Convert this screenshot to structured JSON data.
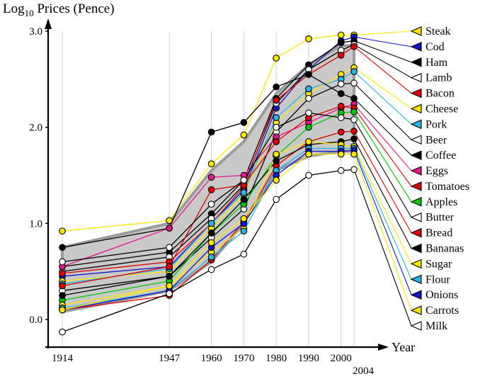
{
  "title": {
    "prefix": "Log",
    "sub": "10",
    "rest": " Prices (Pence)"
  },
  "chart_data": {
    "type": "line",
    "title": "Log10 Prices (Pence)",
    "xlabel": "Year",
    "ylabel": "Log10 Prices (Pence)",
    "x": [
      1914,
      1947,
      1960,
      1970,
      1980,
      1990,
      2000,
      2004
    ],
    "x_tick_labels": [
      "1914",
      "1947",
      "1960",
      "1970",
      "1980",
      "1990",
      "2000",
      "2004"
    ],
    "y_ticks": [
      0.0,
      1.0,
      2.0,
      3.0
    ],
    "y_tick_labels": [
      "0.0",
      "1.0",
      "2.0",
      "3.0"
    ],
    "ylim": [
      -0.25,
      3.1
    ],
    "grid": "vertical",
    "legend_position": "right",
    "band": {
      "name": "price-range-band",
      "fill": "#c9c9c9",
      "stroke": "#9b9b9b",
      "upper": [
        0.75,
        1.0,
        1.55,
        1.85,
        2.35,
        2.65,
        2.85,
        2.85
      ],
      "lower": [
        0.08,
        0.3,
        0.6,
        1.0,
        1.55,
        1.7,
        1.75,
        1.75
      ]
    },
    "series": [
      {
        "name": "Steak",
        "marker": "#ffe800",
        "line": "#ffe800",
        "values": [
          0.92,
          1.03,
          1.62,
          1.92,
          2.72,
          2.92,
          2.96,
          2.96
        ]
      },
      {
        "name": "Cod",
        "marker": "#1414c8",
        "line": "#1414c8",
        "values": [
          0.45,
          0.55,
          1.0,
          1.35,
          2.2,
          2.6,
          2.9,
          2.94
        ]
      },
      {
        "name": "Ham",
        "marker": "#000000",
        "line": "#000000",
        "values": [
          0.55,
          0.7,
          1.1,
          1.45,
          2.3,
          2.65,
          2.88,
          2.9
        ]
      },
      {
        "name": "Lamb",
        "marker": "#ffffff",
        "line": "#000000",
        "values": [
          0.5,
          0.65,
          1.05,
          1.4,
          2.25,
          2.6,
          2.8,
          2.86
        ]
      },
      {
        "name": "Bacon",
        "marker": "#e10000",
        "line": "#e10000",
        "values": [
          0.48,
          0.6,
          1.0,
          1.38,
          2.28,
          2.55,
          2.75,
          2.84
        ]
      },
      {
        "name": "Cheese",
        "marker": "#ffe800",
        "line": "#ffe800",
        "values": [
          0.4,
          0.5,
          0.95,
          1.3,
          2.05,
          2.35,
          2.55,
          2.62
        ]
      },
      {
        "name": "Pork",
        "marker": "#2ab4e6",
        "line": "#2ab4e6",
        "values": [
          0.37,
          0.53,
          1.0,
          1.32,
          2.1,
          2.4,
          2.5,
          2.58
        ]
      },
      {
        "name": "Beer",
        "marker": "#ffffff",
        "line": "#000000",
        "values": [
          0.3,
          0.45,
          0.85,
          1.15,
          1.95,
          2.3,
          2.45,
          2.46
        ]
      },
      {
        "name": "Coffee",
        "marker": "#000000",
        "line": "#000000",
        "values": [
          0.75,
          0.95,
          1.95,
          2.05,
          2.42,
          2.55,
          2.35,
          2.3
        ]
      },
      {
        "name": "Eggs",
        "marker": "#e6198c",
        "line": "#e6198c",
        "values": [
          0.55,
          0.95,
          1.48,
          1.5,
          1.9,
          2.05,
          2.2,
          2.24
        ]
      },
      {
        "name": "Tomatoes",
        "marker": "#e10000",
        "line": "#e10000",
        "values": [
          0.35,
          0.55,
          1.35,
          1.4,
          1.85,
          2.1,
          2.22,
          2.2
        ]
      },
      {
        "name": "Apples",
        "marker": "#00c800",
        "line": "#00c800",
        "values": [
          0.2,
          0.4,
          0.9,
          1.2,
          1.7,
          2.0,
          2.15,
          2.16
        ]
      },
      {
        "name": "Butter",
        "marker": "#ffffff",
        "line": "#000000",
        "values": [
          0.6,
          0.75,
          1.2,
          1.45,
          2.0,
          2.15,
          2.1,
          2.08
        ]
      },
      {
        "name": "Bread",
        "marker": "#e10000",
        "line": "#e10000",
        "values": [
          0.1,
          0.25,
          0.62,
          1.02,
          1.6,
          1.85,
          1.95,
          1.96
        ]
      },
      {
        "name": "Bananas",
        "marker": "#000000",
        "line": "#000000",
        "values": [
          0.25,
          0.45,
          0.9,
          1.25,
          1.65,
          1.82,
          1.85,
          1.88
        ]
      },
      {
        "name": "Sugar",
        "marker": "#ffe800",
        "line": "#ffe800",
        "values": [
          0.15,
          0.35,
          0.7,
          0.95,
          1.72,
          1.85,
          1.82,
          1.8
        ]
      },
      {
        "name": "Flour",
        "marker": "#2ab4e6",
        "line": "#2ab4e6",
        "values": [
          0.12,
          0.3,
          0.65,
          0.92,
          1.55,
          1.78,
          1.78,
          1.78
        ]
      },
      {
        "name": "Onions",
        "marker": "#1414c8",
        "line": "#1414c8",
        "values": [
          0.1,
          0.3,
          0.75,
          1.0,
          1.5,
          1.75,
          1.75,
          1.76
        ]
      },
      {
        "name": "Carrots",
        "marker": "#ffe800",
        "line": "#ffe800",
        "values": [
          0.1,
          0.35,
          0.8,
          1.05,
          1.45,
          1.72,
          1.72,
          1.72
        ]
      },
      {
        "name": "Milk",
        "marker": "#ffffff",
        "line": "#000000",
        "values": [
          -0.13,
          0.27,
          0.52,
          0.68,
          1.25,
          1.5,
          1.55,
          1.56
        ]
      }
    ]
  }
}
